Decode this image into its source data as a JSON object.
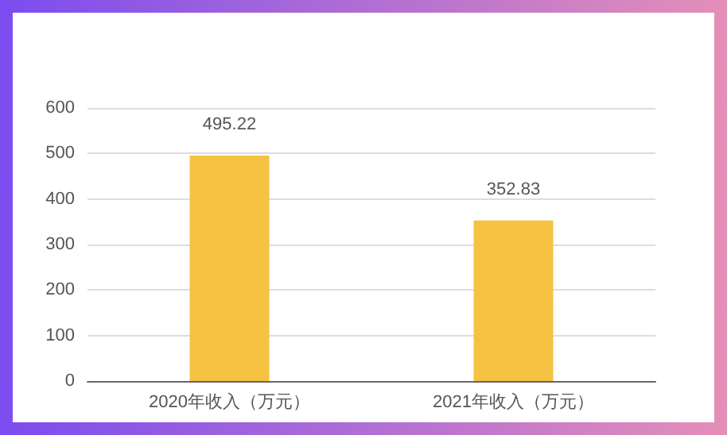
{
  "chart_data": {
    "type": "bar",
    "categories": [
      "2020年收入（万元）",
      "2021年收入（万元）"
    ],
    "values": [
      495.22,
      352.83
    ],
    "color": "#f5c242",
    "ylim": [
      0,
      600
    ],
    "yticks": [
      0,
      100,
      200,
      300,
      400,
      500,
      600
    ],
    "grid": "y",
    "data_labels": true
  }
}
